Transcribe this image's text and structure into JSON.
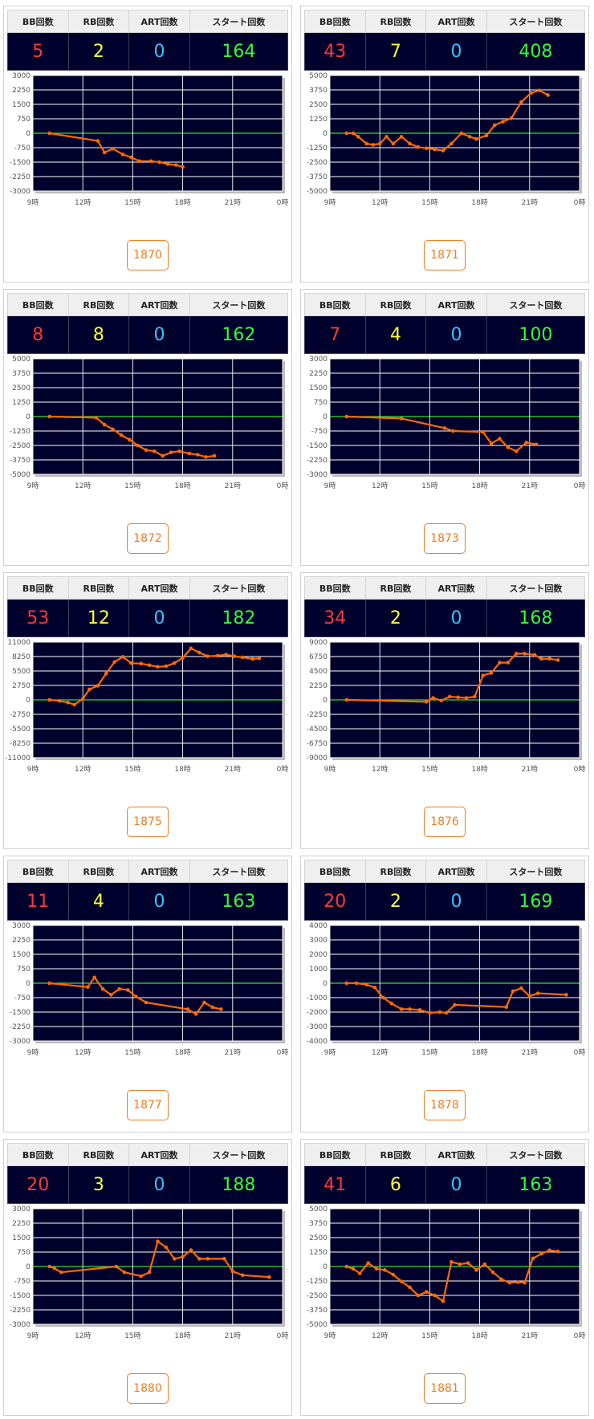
{
  "headers": {
    "bb": "BB回数",
    "rb": "RB回数",
    "art": "ART回数",
    "start": "スタート回数"
  },
  "x_tick_labels": [
    "9時",
    "12時",
    "15時",
    "18時",
    "21時",
    "0時"
  ],
  "colors": {
    "line": "#ff6a00",
    "zero": "#33dd33",
    "plot_bg": "#00002d",
    "grid": "#ffffff"
  },
  "cards": [
    {
      "number": "1870",
      "bb": "5",
      "rb": "2",
      "art": "0",
      "start": "164"
    },
    {
      "number": "1871",
      "bb": "43",
      "rb": "7",
      "art": "0",
      "start": "408"
    },
    {
      "number": "1872",
      "bb": "8",
      "rb": "8",
      "art": "0",
      "start": "162"
    },
    {
      "number": "1873",
      "bb": "7",
      "rb": "4",
      "art": "0",
      "start": "100"
    },
    {
      "number": "1875",
      "bb": "53",
      "rb": "12",
      "art": "0",
      "start": "182"
    },
    {
      "number": "1876",
      "bb": "34",
      "rb": "2",
      "art": "0",
      "start": "168"
    },
    {
      "number": "1877",
      "bb": "11",
      "rb": "4",
      "art": "0",
      "start": "163"
    },
    {
      "number": "1878",
      "bb": "20",
      "rb": "2",
      "art": "0",
      "start": "169"
    },
    {
      "number": "1880",
      "bb": "20",
      "rb": "3",
      "art": "0",
      "start": "188"
    },
    {
      "number": "1881",
      "bb": "41",
      "rb": "6",
      "art": "0",
      "start": "163"
    }
  ],
  "chart_data": [
    {
      "type": "line",
      "x_unit": "hour",
      "xlim": [
        9,
        24
      ],
      "ylim": [
        -3000,
        3000
      ],
      "y_ticks": [
        3000,
        2250,
        1500,
        750,
        0,
        -750,
        -1500,
        -2250,
        -3000
      ],
      "x_ticks": [
        9,
        12,
        15,
        18,
        21,
        24
      ],
      "x": [
        10,
        12.9,
        13.3,
        13.8,
        14.4,
        14.9,
        15.4,
        16.1,
        16.6,
        17.1,
        17.6,
        18
      ],
      "y": [
        0,
        -400,
        -1000,
        -800,
        -1100,
        -1250,
        -1450,
        -1450,
        -1500,
        -1600,
        -1650,
        -1750
      ]
    },
    {
      "type": "line",
      "x_unit": "hour",
      "xlim": [
        9,
        24
      ],
      "ylim": [
        -5000,
        5000
      ],
      "y_ticks": [
        5000,
        3750,
        2500,
        1250,
        0,
        -1250,
        -2500,
        -3750,
        -5000
      ],
      "x_ticks": [
        9,
        12,
        15,
        18,
        21,
        24
      ],
      "x": [
        10,
        10.4,
        10.7,
        11.2,
        11.6,
        12.0,
        12.4,
        12.8,
        13.3,
        13.8,
        14.3,
        14.8,
        15.3,
        15.8,
        16.3,
        16.9,
        17.4,
        17.8,
        18.4,
        18.9,
        19.4,
        19.9,
        20.5,
        21.1,
        21.6,
        22.1
      ],
      "y": [
        0,
        0,
        -300,
        -900,
        -1000,
        -900,
        -300,
        -900,
        -300,
        -900,
        -1200,
        -1300,
        -1400,
        -1500,
        -900,
        0,
        -300,
        -500,
        -200,
        700,
        1000,
        1300,
        2700,
        3500,
        3700,
        3300
      ]
    },
    {
      "type": "line",
      "x_unit": "hour",
      "xlim": [
        9,
        24
      ],
      "ylim": [
        -5000,
        5000
      ],
      "y_ticks": [
        5000,
        3750,
        2500,
        1250,
        0,
        -1250,
        -2500,
        -3750,
        -5000
      ],
      "x_ticks": [
        9,
        12,
        15,
        18,
        21,
        24
      ],
      "x": [
        10,
        12.8,
        13.3,
        13.8,
        14.3,
        14.8,
        15.3,
        15.8,
        16.3,
        16.8,
        17.3,
        17.8,
        18.4,
        18.9,
        19.4,
        19.9
      ],
      "y": [
        0,
        -100,
        -700,
        -1100,
        -1600,
        -2000,
        -2500,
        -2900,
        -3000,
        -3400,
        -3100,
        -3000,
        -3200,
        -3300,
        -3500,
        -3400
      ]
    },
    {
      "type": "line",
      "x_unit": "hour",
      "xlim": [
        9,
        24
      ],
      "ylim": [
        -3000,
        3000
      ],
      "y_ticks": [
        3000,
        2250,
        1500,
        750,
        0,
        -750,
        -1500,
        -2250,
        -3000
      ],
      "x_ticks": [
        9,
        12,
        15,
        18,
        21,
        24
      ],
      "x": [
        10,
        13.3,
        15.9,
        16.4,
        18.2,
        18.7,
        19.2,
        19.7,
        20.2,
        20.8,
        21.4
      ],
      "y": [
        0,
        -100,
        -600,
        -750,
        -800,
        -1400,
        -1150,
        -1600,
        -1800,
        -1350,
        -1450
      ]
    },
    {
      "type": "line",
      "x_unit": "hour",
      "xlim": [
        9,
        24
      ],
      "ylim": [
        -11000,
        11000
      ],
      "y_ticks": [
        11000,
        8250,
        5500,
        2750,
        0,
        -2750,
        -5500,
        -8250,
        -11000
      ],
      "x_ticks": [
        9,
        12,
        15,
        18,
        21,
        24
      ],
      "x": [
        10,
        10.6,
        11.1,
        11.5,
        12.0,
        12.4,
        12.9,
        13.4,
        13.9,
        14.4,
        14.9,
        15.5,
        16.0,
        16.5,
        17.0,
        17.5,
        18.0,
        18.5,
        19.0,
        19.5,
        20.1,
        20.6,
        21.1,
        21.6,
        22.2,
        22.6
      ],
      "y": [
        0,
        -200,
        -500,
        -900,
        200,
        2000,
        2700,
        5000,
        7200,
        8200,
        7000,
        6900,
        6600,
        6300,
        6400,
        7000,
        8000,
        9800,
        9000,
        8300,
        8400,
        8600,
        8300,
        8100,
        7800,
        7900
      ]
    },
    {
      "type": "line",
      "x_unit": "hour",
      "xlim": [
        9,
        24
      ],
      "ylim": [
        -9000,
        9000
      ],
      "y_ticks": [
        9000,
        6750,
        4500,
        2250,
        0,
        -2250,
        -4500,
        -6750,
        -9000
      ],
      "x_ticks": [
        9,
        12,
        15,
        18,
        21,
        24
      ],
      "x": [
        10,
        14.8,
        15.2,
        15.7,
        16.2,
        16.7,
        17.2,
        17.7,
        18.2,
        18.7,
        19.2,
        19.7,
        20.2,
        20.7,
        21.3,
        21.7,
        22.2,
        22.7
      ],
      "y": [
        0,
        -300,
        300,
        -100,
        500,
        400,
        300,
        500,
        3800,
        4200,
        5800,
        5800,
        7200,
        7200,
        7000,
        6400,
        6400,
        6200
      ]
    },
    {
      "type": "line",
      "x_unit": "hour",
      "xlim": [
        9,
        24
      ],
      "ylim": [
        -3000,
        3000
      ],
      "y_ticks": [
        3000,
        2250,
        1500,
        750,
        0,
        -750,
        -1500,
        -2250,
        -3000
      ],
      "x_ticks": [
        9,
        12,
        15,
        18,
        21,
        24
      ],
      "x": [
        10,
        12.3,
        12.7,
        13.2,
        13.7,
        14.2,
        14.7,
        15.2,
        15.8,
        18.3,
        18.8,
        19.3,
        19.8,
        20.3
      ],
      "y": [
        0,
        -200,
        300,
        -300,
        -600,
        -300,
        -350,
        -700,
        -1000,
        -1350,
        -1600,
        -1000,
        -1250,
        -1350
      ]
    },
    {
      "type": "line",
      "x_unit": "hour",
      "xlim": [
        9,
        24
      ],
      "ylim": [
        -4000,
        4000
      ],
      "y_ticks": [
        4000,
        3000,
        2000,
        1000,
        0,
        -1000,
        -2000,
        -3000,
        -4000
      ],
      "x_ticks": [
        9,
        12,
        15,
        18,
        21,
        24
      ],
      "x": [
        10,
        10.6,
        11.2,
        11.7,
        12.2,
        12.7,
        13.3,
        13.8,
        14.4,
        15.0,
        15.6,
        16.0,
        16.5,
        19.6,
        20.0,
        20.5,
        21.0,
        21.5,
        23.2
      ],
      "y": [
        0,
        0,
        -100,
        -300,
        -1000,
        -1400,
        -1800,
        -1800,
        -1850,
        -2050,
        -2000,
        -2050,
        -1500,
        -1650,
        -550,
        -350,
        -900,
        -700,
        -800
      ]
    },
    {
      "type": "line",
      "x_unit": "hour",
      "xlim": [
        9,
        24
      ],
      "ylim": [
        -3000,
        3000
      ],
      "y_ticks": [
        3000,
        2250,
        1500,
        750,
        0,
        -750,
        -1500,
        -2250,
        -3000
      ],
      "x_ticks": [
        9,
        12,
        15,
        18,
        21,
        24
      ],
      "x": [
        10,
        10.3,
        10.7,
        14.0,
        14.5,
        15.5,
        16.0,
        16.5,
        17.0,
        17.5,
        18.0,
        18.5,
        19.0,
        19.5,
        20.5,
        21.0,
        21.6,
        23.2
      ],
      "y": [
        0,
        -100,
        -300,
        0,
        -300,
        -500,
        -300,
        1300,
        1000,
        400,
        500,
        850,
        400,
        400,
        400,
        -250,
        -450,
        -550
      ]
    },
    {
      "type": "line",
      "x_unit": "hour",
      "xlim": [
        9,
        24
      ],
      "ylim": [
        -5000,
        5000
      ],
      "y_ticks": [
        5000,
        3750,
        2500,
        1250,
        0,
        -1250,
        -2500,
        -3750,
        -5000
      ],
      "x_ticks": [
        9,
        12,
        15,
        18,
        21,
        24
      ],
      "x": [
        10,
        10.4,
        10.8,
        11.3,
        11.8,
        12.3,
        12.8,
        13.3,
        13.8,
        14.3,
        14.8,
        15.3,
        15.8,
        16.3,
        16.8,
        17.3,
        17.8,
        18.3,
        18.8,
        19.3,
        19.8,
        20.3,
        20.7,
        21.2,
        21.7,
        22.2,
        22.7
      ],
      "y": [
        0,
        -200,
        -600,
        300,
        -200,
        -300,
        -700,
        -1300,
        -1800,
        -2500,
        -2200,
        -2500,
        -3000,
        400,
        200,
        300,
        -300,
        200,
        -500,
        -1100,
        -1400,
        -1350,
        -1400,
        700,
        1100,
        1400,
        1300
      ]
    }
  ]
}
